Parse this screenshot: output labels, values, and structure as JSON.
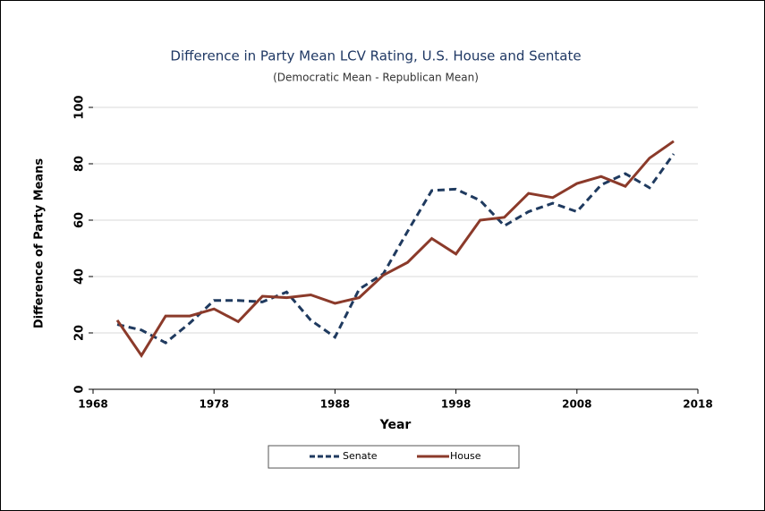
{
  "chart_data": {
    "type": "line",
    "title": "Difference in Party Mean LCV Rating, U.S. House and Sentate",
    "subtitle": "(Democratic Mean - Republican Mean)",
    "x_label": "Year",
    "y_label": "Difference of Party Means",
    "x": [
      1970,
      1972,
      1974,
      1976,
      1978,
      1980,
      1982,
      1984,
      1986,
      1988,
      1990,
      1992,
      1994,
      1996,
      1998,
      2000,
      2002,
      2004,
      2006,
      2008,
      2010,
      2012,
      2014,
      2016
    ],
    "series": [
      {
        "name": "Senate",
        "color": "#1f3a5f",
        "dashed": true,
        "values": [
          23,
          21,
          16.5,
          23.5,
          31.5,
          31.5,
          31,
          34.5,
          24.5,
          18.5,
          35.5,
          41,
          56,
          70.5,
          71,
          67,
          58,
          63,
          66,
          63,
          72.5,
          76.5,
          71.5,
          83.5
        ]
      },
      {
        "name": "House",
        "color": "#8b3a2a",
        "dashed": false,
        "values": [
          24.5,
          12,
          26,
          26,
          28.5,
          24,
          33,
          32.5,
          33.5,
          30.5,
          32.5,
          40.5,
          45,
          53.5,
          48,
          60,
          61,
          69.5,
          68,
          73,
          75.5,
          72,
          82,
          88
        ]
      }
    ],
    "xlim": [
      1968,
      2018
    ],
    "xticks": [
      1968,
      1978,
      1988,
      1998,
      2008,
      2018
    ],
    "ylim": [
      0,
      100
    ],
    "yticks": [
      0,
      20,
      40,
      60,
      80,
      100
    ],
    "grid": true,
    "legend": "bottom"
  }
}
